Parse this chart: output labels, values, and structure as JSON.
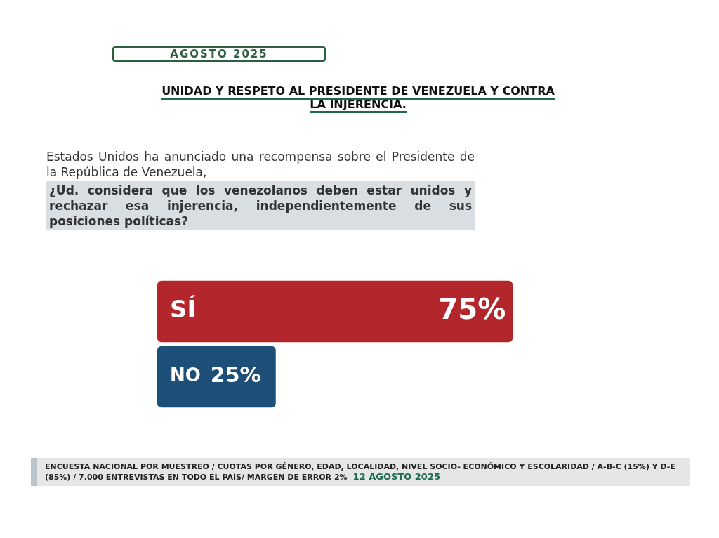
{
  "chart_data": {
    "type": "bar",
    "orientation": "horizontal",
    "title": "UNIDAD Y RESPETO AL PRESIDENTE DE VENEZUELA Y CONTRA LA INJERENCIA.",
    "subtitle": "Estados Unidos ha anunciado una recompensa sobre el Presidente de la República de Venezuela,",
    "annotations": [
      "AGOSTO 2025",
      "¿Ud. considera que los venezolanos deben estar unidos y rechazar esa injerencia, independientemente de sus posiciones políticas?",
      "ENCUESTA NACIONAL POR MUESTREO / CUOTAS POR GÉNERO, EDAD, LOCALIDAD, NIVEL SOCIO- ECONÓMICO Y ESCOLARIDAD / A-B-C (15%) Y D-E (85%) / 7.000 ENTREVISTAS EN TODO EL PAÍS/ MARGEN DE ERROR 2%",
      "12 AGOSTO 2025"
    ],
    "categories": [
      "SÍ",
      "NO"
    ],
    "values": [
      75,
      25
    ],
    "colors": [
      "#b3262b",
      "#1d4f79"
    ],
    "value_labels": [
      "75%",
      "25%"
    ]
  }
}
